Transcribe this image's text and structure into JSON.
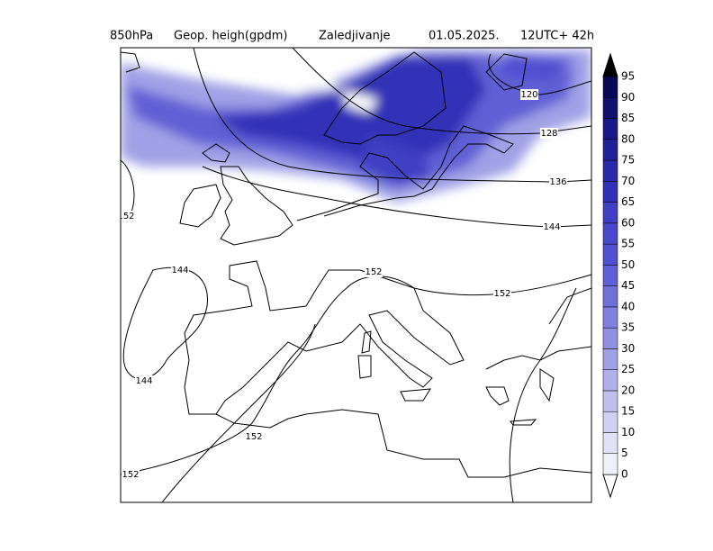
{
  "header": {
    "level": "850hPa",
    "field": "Geop. heigh(gpdm)",
    "product": "Zaledjivanje",
    "date": "01.05.2025.",
    "time": "12UTC+ 42h"
  },
  "contour_labels": [
    120,
    128,
    136,
    144,
    144,
    144,
    152,
    152,
    152,
    152,
    152
  ],
  "colorbar": {
    "ticks": [
      0,
      5,
      10,
      15,
      20,
      25,
      30,
      35,
      40,
      45,
      50,
      55,
      60,
      65,
      70,
      75,
      80,
      85,
      90,
      95
    ],
    "colors": [
      "#ffffff",
      "#f0f0fa",
      "#e0e0f6",
      "#d0d0f2",
      "#c0c0ee",
      "#b0b0ea",
      "#a0a0e6",
      "#9090e2",
      "#8080de",
      "#7070da",
      "#6060d6",
      "#5050d2",
      "#4848cc",
      "#4040c4",
      "#3030b8",
      "#2828a8",
      "#202098",
      "#181888",
      "#101070",
      "#080858",
      "#000000"
    ]
  }
}
